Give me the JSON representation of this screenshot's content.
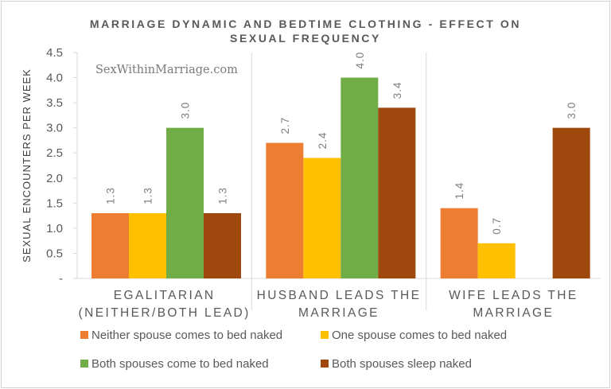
{
  "chart_data": {
    "type": "bar",
    "title": "MARRIAGE DYNAMIC AND BEDTIME CLOTHING - EFFECT ON SEXUAL FREQUENCY",
    "title_lines": [
      "MARRIAGE DYNAMIC AND BEDTIME CLOTHING - EFFECT ON",
      "SEXUAL FREQUENCY"
    ],
    "watermark": "SexWithinMarriage.com",
    "ylabel": "SEXUAL ENCOUNTERS PER WEEK",
    "xlabel": "",
    "ylim": [
      0,
      4.5
    ],
    "yticks": [
      "-",
      "0.5",
      "1.0",
      "1.5",
      "2.0",
      "2.5",
      "3.0",
      "3.5",
      "4.0",
      "4.5"
    ],
    "categories": [
      [
        "EGALITARIAN",
        "(NEITHER/BOTH LEAD)"
      ],
      [
        "HUSBAND LEADS THE",
        "MARRIAGE"
      ],
      [
        "WIFE LEADS THE",
        "MARRIAGE"
      ]
    ],
    "series": [
      {
        "name": "Neither spouse comes to bed naked",
        "color": "#ED7D31",
        "values": [
          1.3,
          2.7,
          1.4
        ]
      },
      {
        "name": "One spouse comes to bed naked",
        "color": "#FFC000",
        "values": [
          1.3,
          2.4,
          0.7
        ]
      },
      {
        "name": "Both spouses come to bed naked",
        "color": "#70AD47",
        "values": [
          3.0,
          4.0,
          null
        ]
      },
      {
        "name": "Both spouses sleep naked",
        "color": "#9E480E",
        "values": [
          1.3,
          3.4,
          3.0
        ]
      }
    ],
    "grid": "vertical separators between categories",
    "legend_position": "bottom"
  }
}
